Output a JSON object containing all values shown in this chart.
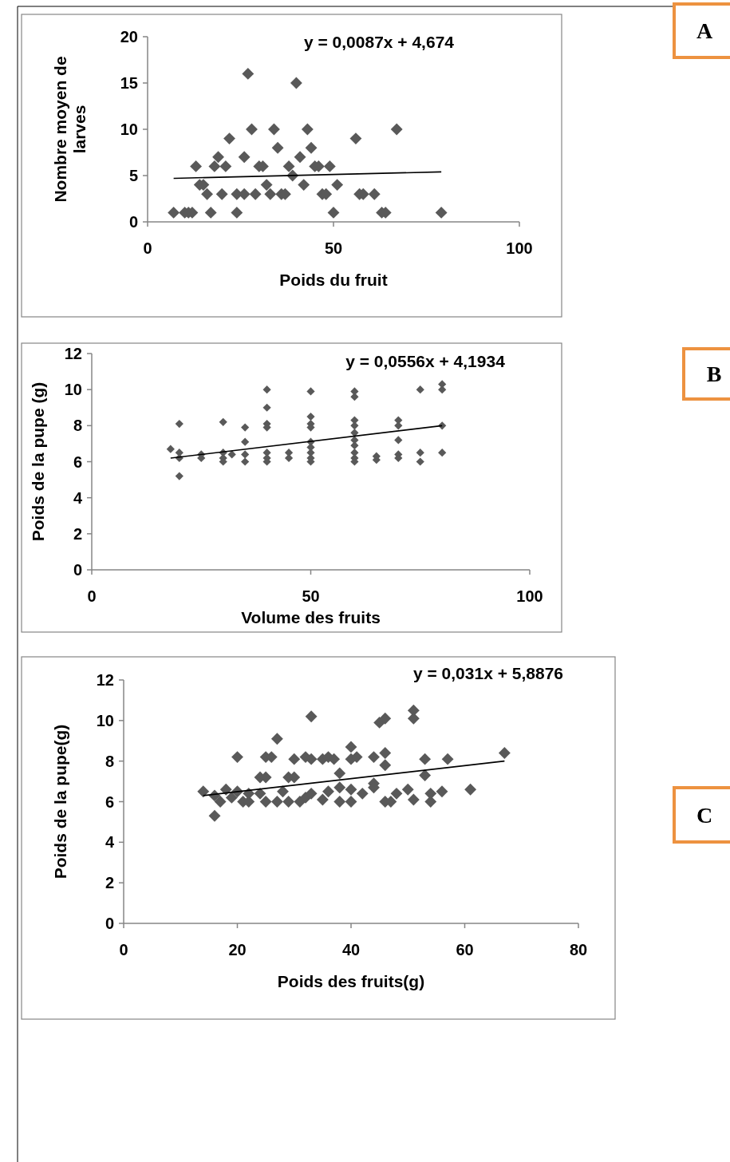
{
  "chart_data": [
    {
      "type": "scatter",
      "xlabel": "Poids du fruit",
      "ylabel": "Nombre moyen de larves",
      "annotations": [
        "y = 0,0087x + 4,674",
        "A"
      ],
      "xlim": [
        0,
        100
      ],
      "xticks": [
        0,
        50,
        100
      ],
      "ylim": [
        0,
        20
      ],
      "yticks": [
        0,
        5,
        10,
        15,
        20
      ],
      "grid": false,
      "series": [
        {
          "marker": "diamond",
          "color": "#595959",
          "x": [
            7,
            10,
            11,
            12,
            13,
            14,
            15,
            16,
            17,
            18,
            19,
            20,
            21,
            22,
            24,
            24,
            26,
            26,
            27,
            28,
            29,
            30,
            31,
            32,
            33,
            34,
            35,
            36,
            37,
            38,
            39,
            40,
            41,
            42,
            43,
            44,
            45,
            46,
            47,
            48,
            49,
            50,
            51,
            56,
            57,
            58,
            61,
            63,
            64,
            67,
            79
          ],
          "values": [
            1,
            1,
            1,
            1,
            6,
            4,
            4,
            3,
            1,
            6,
            7,
            3,
            6,
            9,
            3,
            1,
            3,
            7,
            16,
            10,
            3,
            6,
            6,
            4,
            3,
            10,
            8,
            3,
            3,
            6,
            5,
            15,
            7,
            4,
            10,
            8,
            6,
            6,
            3,
            3,
            6,
            1,
            4,
            9,
            3,
            3,
            3,
            1,
            1,
            10,
            1
          ]
        },
        {
          "type": "line",
          "marker": "none",
          "color": "#000000",
          "x": [
            7,
            79
          ],
          "values": [
            4.7,
            5.4
          ]
        }
      ]
    },
    {
      "type": "scatter",
      "xlabel": "Volume des fruits",
      "ylabel": "Poids de la pupe (g)",
      "annotations": [
        "y = 0,0556x + 4,1934",
        "B"
      ],
      "xlim": [
        0,
        100
      ],
      "xticks": [
        0,
        50,
        100
      ],
      "ylim": [
        0,
        12
      ],
      "yticks": [
        0,
        2,
        4,
        6,
        8,
        10,
        12
      ],
      "grid": false,
      "series": [
        {
          "marker": "diamond",
          "color": "#595959",
          "x": [
            18,
            20,
            20,
            20,
            20,
            25,
            25,
            30,
            30,
            30,
            30,
            32,
            35,
            35,
            35,
            35,
            40,
            40,
            40,
            40,
            40,
            40,
            40,
            45,
            45,
            50,
            50,
            50,
            50,
            50,
            50,
            50,
            50,
            50,
            60,
            60,
            60,
            60,
            60,
            60,
            60,
            60,
            60,
            60,
            65,
            65,
            70,
            70,
            70,
            70,
            70,
            75,
            75,
            75,
            80,
            80,
            80,
            80
          ],
          "values": [
            6.7,
            8.1,
            6.5,
            6.2,
            5.2,
            6.4,
            6.2,
            8.2,
            6.5,
            6.2,
            6.0,
            6.4,
            7.9,
            7.1,
            6.4,
            6.0,
            10.0,
            9.0,
            8.1,
            7.9,
            6.5,
            6.2,
            6.0,
            6.5,
            6.2,
            9.9,
            8.5,
            8.1,
            7.9,
            7.1,
            6.8,
            6.5,
            6.2,
            6.0,
            9.9,
            9.6,
            8.3,
            8.0,
            7.6,
            7.2,
            6.9,
            6.5,
            6.2,
            6.0,
            6.3,
            6.1,
            8.3,
            8.0,
            7.2,
            6.4,
            6.2,
            10.0,
            6.5,
            6.0,
            10.3,
            10.0,
            8.0,
            6.5
          ]
        },
        {
          "type": "line",
          "marker": "none",
          "color": "#000000",
          "x": [
            18,
            80
          ],
          "values": [
            6.2,
            8.0
          ]
        }
      ]
    },
    {
      "type": "scatter",
      "xlabel": "Poids des fruits(g)",
      "ylabel": "Poids de la pupe(g)",
      "annotations": [
        "y = 0,031x + 5,8876",
        "C"
      ],
      "xlim": [
        0,
        80
      ],
      "xticks": [
        0,
        20,
        40,
        60,
        80
      ],
      "ylim": [
        0,
        12
      ],
      "yticks": [
        0,
        2,
        4,
        6,
        8,
        10,
        12
      ],
      "grid": false,
      "series": [
        {
          "marker": "diamond",
          "color": "#595959",
          "x": [
            14,
            16,
            16,
            17,
            18,
            19,
            20,
            20,
            21,
            22,
            22,
            24,
            24,
            25,
            25,
            25,
            26,
            27,
            27,
            28,
            29,
            29,
            30,
            30,
            31,
            32,
            32,
            33,
            33,
            33,
            35,
            35,
            36,
            36,
            37,
            38,
            38,
            38,
            40,
            40,
            40,
            40,
            41,
            42,
            44,
            44,
            44,
            45,
            46,
            46,
            46,
            46,
            47,
            48,
            50,
            51,
            51,
            51,
            53,
            53,
            54,
            54,
            56,
            57,
            61,
            67
          ],
          "values": [
            6.5,
            5.3,
            6.3,
            6.0,
            6.6,
            6.2,
            8.2,
            6.5,
            6.0,
            6.0,
            6.4,
            7.2,
            6.4,
            8.2,
            7.2,
            6.0,
            8.2,
            9.1,
            6.0,
            6.5,
            7.2,
            6.0,
            7.2,
            8.1,
            6.0,
            8.2,
            6.2,
            10.2,
            8.1,
            6.4,
            8.1,
            6.1,
            8.2,
            6.5,
            8.1,
            7.4,
            6.0,
            6.7,
            8.7,
            6.0,
            8.1,
            6.6,
            8.2,
            6.4,
            8.2,
            6.9,
            6.7,
            9.9,
            10.1,
            8.4,
            7.8,
            6.0,
            6.0,
            6.4,
            6.6,
            10.5,
            10.1,
            6.1,
            8.1,
            7.3,
            6.0,
            6.4,
            6.5,
            8.1,
            6.6,
            8.4
          ]
        },
        {
          "type": "line",
          "marker": "none",
          "color": "#000000",
          "x": [
            14,
            67
          ],
          "values": [
            6.3,
            8.0
          ]
        }
      ]
    }
  ]
}
